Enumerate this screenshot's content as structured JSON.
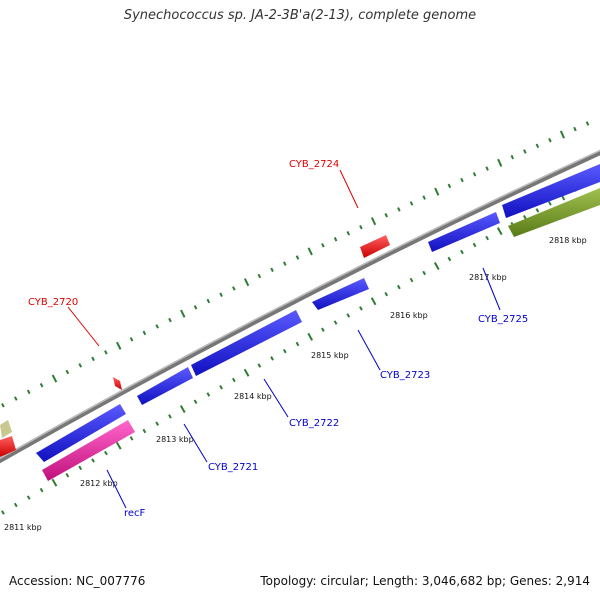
{
  "title": "Synechococcus sp. JA-2-3B'a(2-13), complete genome",
  "footer": {
    "accession": "Accession: NC_007776",
    "stats": "Topology: circular; Length: 3,046,682 bp; Genes: 2,914"
  },
  "colors": {
    "red_gene": "#ff1a1a",
    "blue_gene": "#1a1aee",
    "pink_gene": "#ee1aa0",
    "olive_gene": "#7a9a2a",
    "khaki_gene": "#c8c890",
    "backbone": "#888888",
    "tick_green": "#2e7d32",
    "red_label": "#dd0000",
    "blue_label": "#0000cc"
  },
  "scale_labels": [
    "2811 kbp",
    "2812 kbp",
    "2813 kbp",
    "2814 kbp",
    "2815 kbp",
    "2816 kbp",
    "2817 kbp",
    "2818 kbp"
  ],
  "gene_labels": {
    "cyb2720": "CYB_2720",
    "cyb2724": "CYB_2724",
    "cyb2721": "CYB_2721",
    "cyb2722": "CYB_2722",
    "cyb2723": "CYB_2723",
    "cyb2725": "CYB_2725",
    "recf": "recF"
  }
}
